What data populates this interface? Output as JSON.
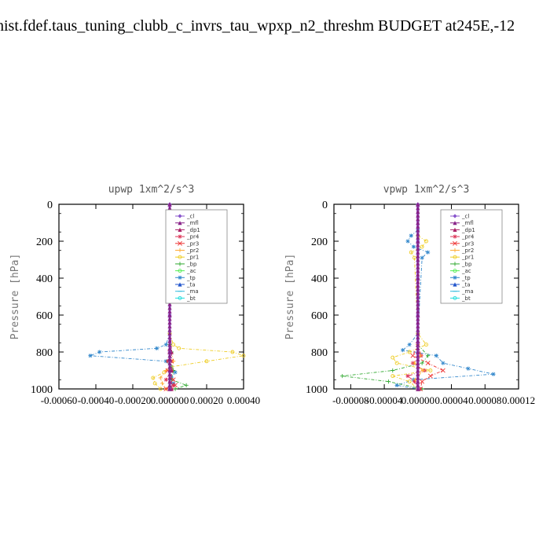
{
  "page_title": "hist.fdef.taus_tuning_clubb_c_invrs_tau_wpxp_n2_threshm  BUDGET at245E,-12",
  "legend_entries": [
    {
      "label": "_cl",
      "color": "#8855cc",
      "marker": "diamond"
    },
    {
      "label": "_mfl",
      "color": "#882288",
      "marker": "triangle"
    },
    {
      "label": "_dp1",
      "color": "#aa2266",
      "marker": "triangle"
    },
    {
      "label": "_pr4",
      "color": "#dd3355",
      "marker": "star"
    },
    {
      "label": "_pr3",
      "color": "#ee3333",
      "marker": "x"
    },
    {
      "label": "_pr2",
      "color": "#ffaa33",
      "marker": "plus"
    },
    {
      "label": "_pr1",
      "color": "#eecc22",
      "marker": "circle"
    },
    {
      "label": "_bp",
      "color": "#33aa33",
      "marker": "plus"
    },
    {
      "label": "_ac",
      "color": "#55ee55",
      "marker": "circle"
    },
    {
      "label": "_tp",
      "color": "#3388cc",
      "marker": "star"
    },
    {
      "label": "_ta",
      "color": "#2255cc",
      "marker": "triangle"
    },
    {
      "label": "_ma",
      "color": "#33bbdd",
      "marker": "dash"
    },
    {
      "label": "_bt",
      "color": "#22dddd",
      "marker": "circle"
    }
  ],
  "chart_data": [
    {
      "type": "line",
      "title": "upwp   1xm^2/s^3",
      "ylabel": "Pressure [hPa]",
      "xlabel": "",
      "xlim": [
        -0.0006,
        0.0004
      ],
      "ylim": [
        1000,
        0
      ],
      "xticks": [
        -0.0006,
        -0.0004,
        -0.0002,
        0.0,
        0.0002,
        0.0004
      ],
      "xtick_labels": [
        "-0.00060",
        "-0.00040",
        "-0.00020",
        "0.000000",
        "0.00020",
        "0.00040"
      ],
      "yticks": [
        0,
        200,
        400,
        600,
        800,
        1000
      ],
      "ytick_labels": [
        "0",
        "200",
        "400",
        "600",
        "800",
        "1000"
      ],
      "legend_position": "top-right",
      "grid": false,
      "series": [
        {
          "name": "_tp",
          "y": [
            700,
            760,
            780,
            800,
            820,
            850,
            880,
            910,
            940,
            970,
            1000
          ],
          "x": [
            0,
            -2e-05,
            -7e-05,
            -0.00038,
            -0.00043,
            -2e-05,
            1e-05,
            3e-05,
            1e-05,
            2e-05,
            0
          ]
        },
        {
          "name": "_pr1",
          "y": [
            700,
            760,
            780,
            800,
            820,
            850,
            880,
            910,
            940,
            970,
            1000
          ],
          "x": [
            0,
            2e-05,
            5e-05,
            0.00034,
            0.0004,
            0.0002,
            1e-05,
            -3e-05,
            -9e-05,
            -8e-05,
            -5e-05
          ]
        },
        {
          "name": "_pr2",
          "y": [
            760,
            800,
            850,
            900,
            940,
            970,
            1000
          ],
          "x": [
            0,
            1e-05,
            2e-05,
            -2e-05,
            -5e-05,
            -4e-05,
            -2e-05
          ]
        },
        {
          "name": "_bp",
          "y": [
            760,
            800,
            850,
            900,
            950,
            980,
            1000
          ],
          "x": [
            0,
            1e-05,
            -1e-05,
            2e-05,
            1e-05,
            9e-05,
            3e-05
          ]
        },
        {
          "name": "_pr3",
          "y": [
            800,
            850,
            900,
            950,
            980,
            1000
          ],
          "x": [
            0,
            1e-05,
            -1e-05,
            2e-05,
            3e-05,
            -2e-05
          ]
        },
        {
          "name": "_pr4",
          "y": [
            800,
            850,
            900,
            950,
            980,
            1000
          ],
          "x": [
            0,
            -1e-05,
            1e-05,
            -2e-05,
            2e-05,
            1e-05
          ]
        },
        {
          "name": "_dp1",
          "y": [
            0,
            200,
            400,
            600,
            800,
            900,
            1000
          ],
          "x": [
            0,
            0,
            0,
            0,
            1e-05,
            1e-05,
            1e-05
          ]
        },
        {
          "name": "_mfl",
          "y": [
            0,
            200,
            400,
            600,
            800,
            1000
          ],
          "x": [
            0,
            0,
            0,
            0,
            0,
            0
          ]
        },
        {
          "name": "_cl",
          "y": [
            0,
            200,
            400,
            600,
            800,
            1000
          ],
          "x": [
            0,
            0,
            0,
            0,
            0,
            0
          ]
        }
      ]
    },
    {
      "type": "line",
      "title": "vpwp   1xm^2/s^3",
      "ylabel": "Pressure [hPa]",
      "xlabel": "",
      "xlim": [
        -0.0001,
        0.00012
      ],
      "ylim": [
        1000,
        0
      ],
      "xticks": [
        -8e-05,
        -4e-05,
        0.0,
        4e-05,
        8e-05,
        0.00012
      ],
      "xtick_labels": [
        "-0.00008",
        "-0.00004",
        "0.00000",
        "0.00004",
        "0.00008",
        "0.00012"
      ],
      "yticks": [
        0,
        200,
        400,
        600,
        800,
        1000
      ],
      "ytick_labels": [
        "0",
        "200",
        "400",
        "600",
        "800",
        "1000"
      ],
      "legend_position": "top-right",
      "grid": false,
      "series": [
        {
          "name": "_tp",
          "y": [
            140,
            170,
            200,
            230,
            260,
            290,
            700,
            760,
            790,
            820,
            860,
            890,
            920,
            950,
            980,
            1000
          ],
          "x": [
            0,
            -8e-06,
            -1.2e-05,
            -5e-06,
            1.2e-05,
            5e-06,
            0,
            -1e-05,
            -1.8e-05,
            2.2e-05,
            3e-05,
            6e-05,
            9e-05,
            -5e-06,
            -2.5e-05,
            0
          ]
        },
        {
          "name": "_pr1",
          "y": [
            170,
            200,
            230,
            260,
            290,
            700,
            760,
            800,
            830,
            860,
            900,
            930,
            960,
            1000
          ],
          "x": [
            0,
            1e-05,
            5e-06,
            -8e-06,
            -4e-06,
            0,
            1e-05,
            -1e-05,
            -3e-05,
            -2.5e-05,
            1.5e-05,
            -3e-05,
            -1e-05,
            0
          ]
        },
        {
          "name": "_bp",
          "y": [
            760,
            820,
            860,
            900,
            930,
            960,
            1000
          ],
          "x": [
            0,
            1.2e-05,
            5e-06,
            -3e-05,
            -9e-05,
            -3.5e-05,
            5e-06
          ]
        },
        {
          "name": "_pr3",
          "y": [
            760,
            820,
            860,
            900,
            930,
            960,
            1000
          ],
          "x": [
            0,
            -6e-06,
            1.2e-05,
            3e-05,
            1.5e-05,
            5e-06,
            3e-06
          ]
        },
        {
          "name": "_pr4",
          "y": [
            760,
            820,
            860,
            900,
            930,
            960,
            1000
          ],
          "x": [
            0,
            4e-06,
            -6e-06,
            8e-06,
            -1.2e-05,
            -4e-06,
            2e-06
          ]
        },
        {
          "name": "_pr2",
          "y": [
            760,
            820,
            860,
            900,
            950,
            1000
          ],
          "x": [
            0,
            3e-06,
            -4e-06,
            6e-06,
            -3e-06,
            0
          ]
        },
        {
          "name": "_dp1",
          "y": [
            0,
            200,
            400,
            600,
            800,
            1000
          ],
          "x": [
            0,
            0,
            0,
            0,
            0,
            1e-06
          ]
        },
        {
          "name": "_mfl",
          "y": [
            0,
            200,
            400,
            600,
            800,
            1000
          ],
          "x": [
            0,
            0,
            0,
            0,
            0,
            0
          ]
        },
        {
          "name": "_cl",
          "y": [
            0,
            200,
            400,
            600,
            800,
            1000
          ],
          "x": [
            0,
            0,
            0,
            0,
            0,
            0
          ]
        }
      ]
    }
  ]
}
